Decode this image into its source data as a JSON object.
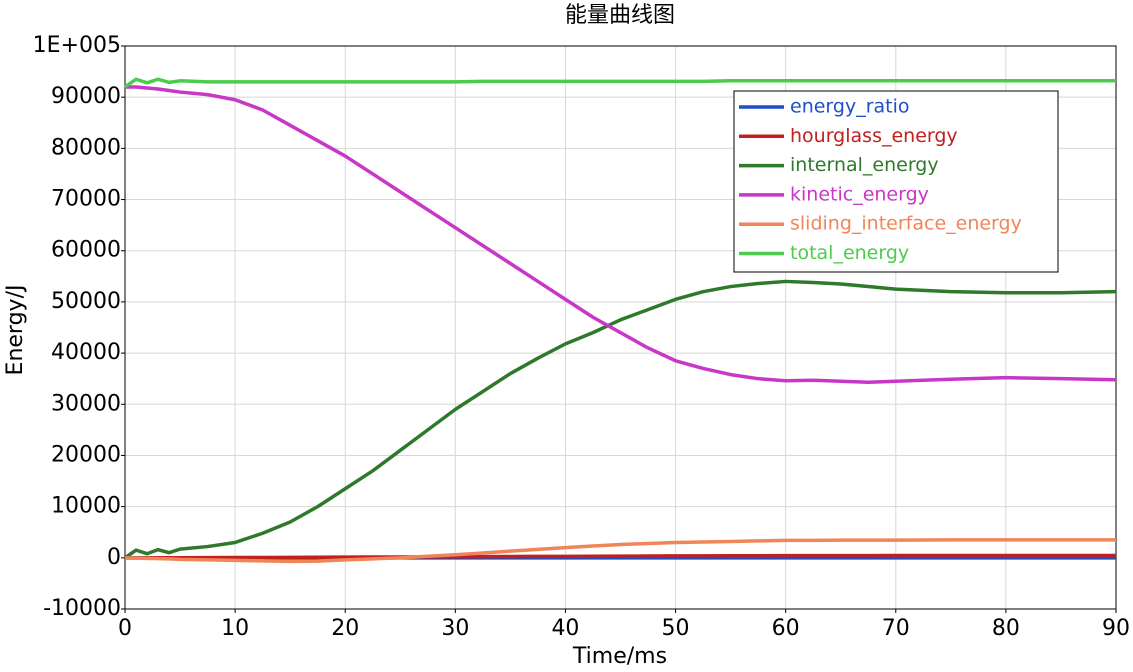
{
  "chart_data": {
    "type": "line",
    "title": "能量曲线图",
    "x_label": "Time/ms",
    "y_label": "Energy/J",
    "x": [
      0,
      1,
      2,
      3,
      4,
      5,
      7.5,
      10,
      12.5,
      15,
      17.5,
      20,
      22.5,
      25,
      27.5,
      30,
      32.5,
      35,
      37.5,
      40,
      42.5,
      45,
      47.5,
      50,
      52.5,
      55,
      57.5,
      60,
      62.5,
      65,
      67.5,
      70,
      75,
      80,
      85,
      90
    ],
    "series": [
      {
        "name": "energy_ratio",
        "color": "#1f4fc8",
        "values": [
          1,
          1,
          1,
          1,
          1,
          1,
          1,
          1,
          1,
          1,
          1,
          1,
          1,
          1,
          1,
          1,
          1,
          1,
          1,
          1,
          1,
          1,
          1,
          1,
          1,
          1,
          1,
          1,
          1,
          1,
          1,
          1,
          1,
          1,
          1,
          1
        ]
      },
      {
        "name": "hourglass_energy",
        "color": "#c0201e",
        "values": [
          0,
          0,
          0,
          10,
          10,
          20,
          30,
          50,
          70,
          90,
          110,
          130,
          150,
          170,
          190,
          210,
          230,
          250,
          270,
          290,
          310,
          330,
          350,
          370,
          390,
          400,
          410,
          420,
          430,
          440,
          440,
          450,
          450,
          460,
          460,
          460
        ]
      },
      {
        "name": "internal_energy",
        "color": "#2f7a2a",
        "values": [
          0,
          1500,
          800,
          1600,
          1000,
          1700,
          2200,
          3000,
          4800,
          7000,
          10000,
          13500,
          17000,
          21000,
          25000,
          29000,
          32500,
          36000,
          39000,
          41800,
          44000,
          46500,
          48500,
          50500,
          52000,
          53000,
          53600,
          54000,
          53800,
          53500,
          53000,
          52500,
          52000,
          51800,
          51800,
          52000
        ]
      },
      {
        "name": "kinetic_energy",
        "color": "#c837c8",
        "values": [
          92000,
          92000,
          91800,
          91600,
          91300,
          91000,
          90500,
          89500,
          87500,
          84500,
          81500,
          78500,
          75000,
          71500,
          68000,
          64500,
          61000,
          57500,
          54000,
          50500,
          47000,
          44000,
          41000,
          38500,
          37000,
          35800,
          35000,
          34600,
          34700,
          34500,
          34300,
          34500,
          34900,
          35200,
          35000,
          34800
        ]
      },
      {
        "name": "sliding_interface_energy",
        "color": "#f0855a",
        "values": [
          0,
          -50,
          -100,
          -150,
          -200,
          -300,
          -400,
          -500,
          -600,
          -700,
          -650,
          -400,
          -200,
          0,
          300,
          600,
          950,
          1300,
          1650,
          2000,
          2300,
          2600,
          2800,
          3000,
          3100,
          3200,
          3300,
          3400,
          3400,
          3450,
          3450,
          3450,
          3500,
          3500,
          3500,
          3500
        ]
      },
      {
        "name": "total_energy",
        "color": "#4ccc4c",
        "values": [
          92000,
          93500,
          92800,
          93500,
          92900,
          93200,
          93000,
          93000,
          93000,
          93000,
          93000,
          93000,
          93000,
          93000,
          93000,
          93000,
          93100,
          93100,
          93100,
          93100,
          93100,
          93100,
          93100,
          93100,
          93100,
          93200,
          93200,
          93200,
          93200,
          93200,
          93200,
          93200,
          93200,
          93200,
          93200,
          93200
        ]
      }
    ],
    "xlim": [
      0,
      90
    ],
    "xticks": [
      0,
      10,
      20,
      30,
      40,
      50,
      60,
      70,
      80,
      90
    ],
    "ylim": [
      -10000,
      100000
    ],
    "yticks": [
      -10000,
      0,
      10000,
      20000,
      30000,
      40000,
      50000,
      60000,
      70000,
      80000,
      90000,
      {
        "value": 100000,
        "label": "1E+005"
      }
    ],
    "grid": true,
    "legend": "upper right"
  }
}
